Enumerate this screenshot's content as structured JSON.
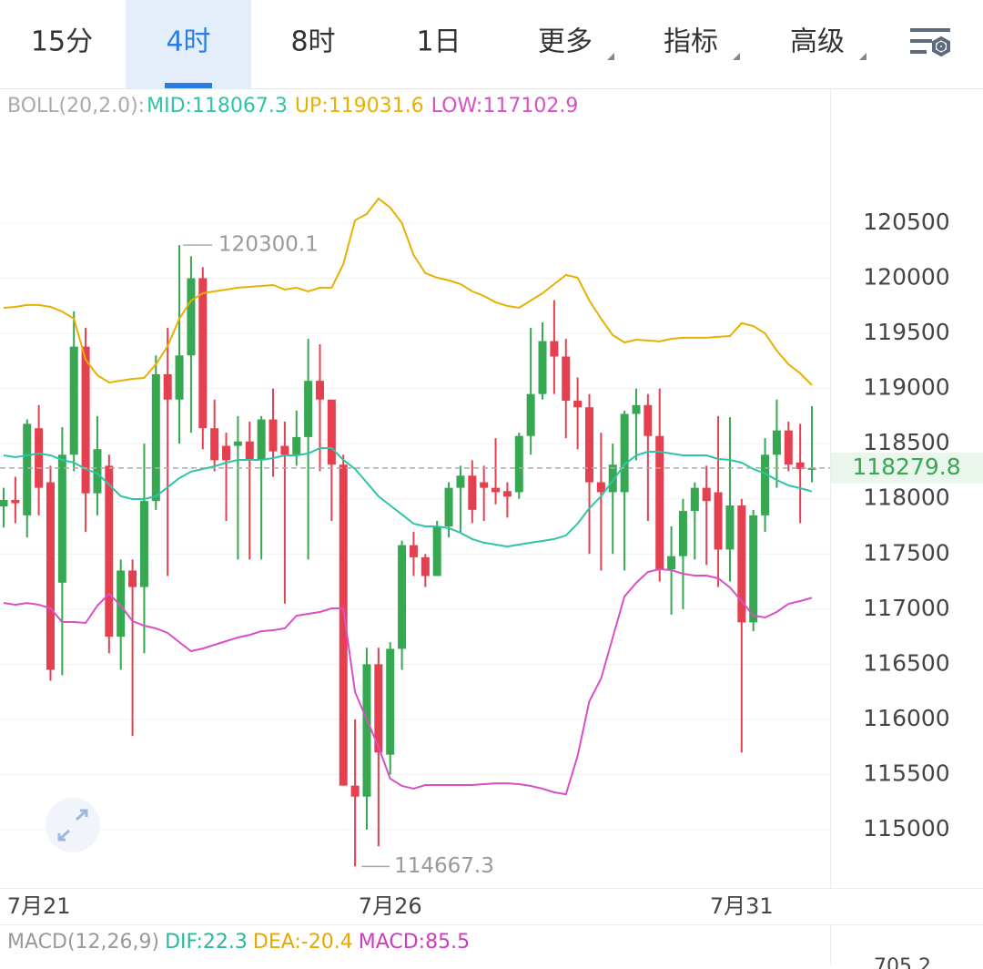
{
  "tabs": [
    "15分",
    "4时",
    "8时",
    "1日",
    "更多",
    "指标",
    "高级"
  ],
  "active_tab": 1,
  "indicator_label": "BOLL(20,2.0):",
  "macd_legend": [
    {
      "text": "MACD(12,26,9)",
      "color": "#999999"
    },
    {
      "text": "DIF:22.3",
      "color": "#26b9a0"
    },
    {
      "text": "DEA:-20.4",
      "color": "#e8a800"
    },
    {
      "text": "MACD:85.5",
      "color": "#d03cbf"
    }
  ],
  "macd_axis_label": "705.2",
  "chart_data": {
    "type": "candlestick",
    "categories": [
      null,
      null,
      null,
      "7月21",
      null,
      null,
      null,
      null,
      null,
      null,
      null,
      null,
      null,
      null,
      null,
      null,
      null,
      null,
      null,
      null,
      null,
      null,
      null,
      null,
      null,
      null,
      null,
      null,
      null,
      null,
      null,
      null,
      null,
      "7月26",
      null,
      null,
      null,
      null,
      null,
      null,
      null,
      null,
      null,
      null,
      null,
      null,
      null,
      null,
      null,
      null,
      null,
      null,
      null,
      null,
      null,
      null,
      null,
      null,
      null,
      null,
      null,
      null,
      null,
      "7月31",
      null,
      null,
      null,
      null,
      null,
      null
    ],
    "open": [
      117930,
      117990,
      117850,
      118640,
      118150,
      117240,
      118400,
      119380,
      118050,
      118300,
      116750,
      117350,
      117200,
      117980,
      119130,
      118900,
      119300,
      120000,
      118640,
      118480,
      118480,
      118520,
      118350,
      118720,
      118480,
      118400,
      118560,
      119070,
      118900,
      118310,
      115400,
      115300,
      116500,
      115680,
      116640,
      117580,
      117470,
      117300,
      117750,
      118100,
      118210,
      118150,
      118100,
      118070,
      118060,
      118570,
      118950,
      119430,
      119290,
      118890,
      118830,
      118150,
      118060,
      118060,
      118770,
      118850,
      118570,
      117360,
      117480,
      117890,
      118100,
      118060,
      117540,
      117940,
      116880,
      117850,
      118400,
      118620,
      118330,
      118270
    ],
    "high": [
      118100,
      118200,
      118720,
      118850,
      118300,
      118650,
      119700,
      119550,
      118750,
      118400,
      117450,
      117450,
      118500,
      119300,
      119550,
      120300.1,
      120200,
      120100,
      118900,
      118600,
      118750,
      118700,
      118750,
      119000,
      118700,
      118800,
      119450,
      119400,
      118900,
      118400,
      116000,
      116650,
      116650,
      116700,
      117620,
      117700,
      117500,
      117800,
      118150,
      118300,
      118350,
      118300,
      118550,
      118150,
      118600,
      119550,
      119600,
      119800,
      119450,
      119100,
      118950,
      118600,
      118500,
      118800,
      119000,
      118950,
      119000,
      117750,
      118000,
      118150,
      118300,
      118750,
      118740,
      118000,
      117900,
      118550,
      118900,
      118700,
      118680,
      118840
    ],
    "low": [
      117740,
      117780,
      117650,
      117850,
      116350,
      116400,
      118250,
      117700,
      117850,
      116600,
      116450,
      115850,
      116600,
      117900,
      117300,
      118500,
      118600,
      118450,
      118250,
      117800,
      117450,
      117450,
      117450,
      118200,
      117050,
      118300,
      117450,
      118250,
      117800,
      115400,
      114667.3,
      115000,
      114850,
      115500,
      116450,
      117300,
      117200,
      117300,
      117650,
      117700,
      117780,
      117800,
      117950,
      117830,
      118000,
      118400,
      118900,
      118950,
      118550,
      118450,
      117500,
      117350,
      117500,
      117350,
      118350,
      117800,
      117250,
      116950,
      117000,
      117450,
      117400,
      117200,
      117250,
      115700,
      116800,
      117700,
      118100,
      118250,
      117780,
      118150
    ],
    "close": [
      117990,
      117960,
      118680,
      118100,
      116450,
      118400,
      119380,
      118050,
      118450,
      116750,
      117350,
      117200,
      117980,
      119130,
      118900,
      119300,
      120000,
      118640,
      118350,
      118350,
      118520,
      118350,
      118720,
      118430,
      118400,
      118560,
      119070,
      118900,
      118310,
      115400,
      115300,
      116500,
      115700,
      116640,
      117580,
      117470,
      117300,
      117750,
      118100,
      118210,
      117900,
      118100,
      118060,
      118020,
      118570,
      118950,
      119430,
      119290,
      118890,
      118830,
      118150,
      118060,
      118310,
      118770,
      118850,
      118570,
      117360,
      117480,
      117890,
      118100,
      117980,
      117540,
      117940,
      116880,
      117850,
      118400,
      118620,
      118310,
      118270,
      118279.8
    ],
    "up_color": "#36a852",
    "down_color": "#e4404f",
    "series": [
      {
        "name": "MID:",
        "color": "#2ec4a6",
        "values": [
          118394,
          118378,
          118394,
          118411,
          118394,
          118353,
          118328,
          118270,
          118229,
          118130,
          118023,
          117998,
          117998,
          118023,
          118105,
          118188,
          118246,
          118270,
          118295,
          118328,
          118353,
          118353,
          118353,
          118369,
          118394,
          118394,
          118411,
          118460,
          118460,
          118353,
          118270,
          118147,
          118023,
          117940,
          117858,
          117775,
          117750,
          117750,
          117734,
          117692,
          117635,
          117602,
          117585,
          117568,
          117585,
          117602,
          117618,
          117635,
          117668,
          117775,
          117915,
          118023,
          118163,
          118312,
          118394,
          118427,
          118427,
          118411,
          118394,
          118394,
          118394,
          118361,
          118353,
          118328,
          118270,
          118229,
          118171,
          118122,
          118097,
          118067.3
        ]
      },
      {
        "name": "UP:",
        "color": "#e8b000",
        "values": [
          119732,
          119740,
          119757,
          119757,
          119740,
          119699,
          119633,
          119261,
          119121,
          119055,
          119071,
          119088,
          119096,
          119220,
          119385,
          119633,
          119798,
          119864,
          119881,
          119897,
          119914,
          119922,
          119930,
          119938,
          119897,
          119914,
          119881,
          119914,
          119914,
          120128,
          120525,
          120583,
          120723,
          120640,
          120500,
          120211,
          120046,
          120005,
          119980,
          119947,
          119881,
          119839,
          119782,
          119749,
          119732,
          119798,
          119864,
          119947,
          120029,
          120005,
          119798,
          119633,
          119484,
          119418,
          119443,
          119435,
          119427,
          119451,
          119460,
          119460,
          119460,
          119468,
          119476,
          119592,
          119567,
          119501,
          119344,
          119220,
          119138,
          119031.6
        ]
      },
      {
        "name": "LOW:",
        "color": "#d94fc6",
        "values": [
          117056,
          117040,
          117056,
          117040,
          117007,
          116883,
          116883,
          116875,
          117032,
          117139,
          117032,
          116891,
          116850,
          116825,
          116784,
          116701,
          116619,
          116643,
          116677,
          116710,
          116743,
          116767,
          116800,
          116809,
          116825,
          116941,
          116957,
          116974,
          117007,
          117007,
          116247,
          115999,
          115752,
          115463,
          115397,
          115372,
          115405,
          115405,
          115405,
          115405,
          115405,
          115413,
          115421,
          115421,
          115413,
          115397,
          115372,
          115339,
          115322,
          115669,
          116165,
          116371,
          116743,
          117114,
          117238,
          117337,
          117362,
          117354,
          117321,
          117304,
          117304,
          117279,
          117197,
          117073,
          116941,
          116924,
          116974,
          117048,
          117073,
          117102.9
        ]
      }
    ],
    "ylim": [
      114472,
      121697
    ],
    "yticks": [
      115000,
      115500,
      116000,
      116500,
      117000,
      117500,
      118000,
      118500,
      119000,
      119500,
      120000,
      120500
    ],
    "grid": true
  }
}
